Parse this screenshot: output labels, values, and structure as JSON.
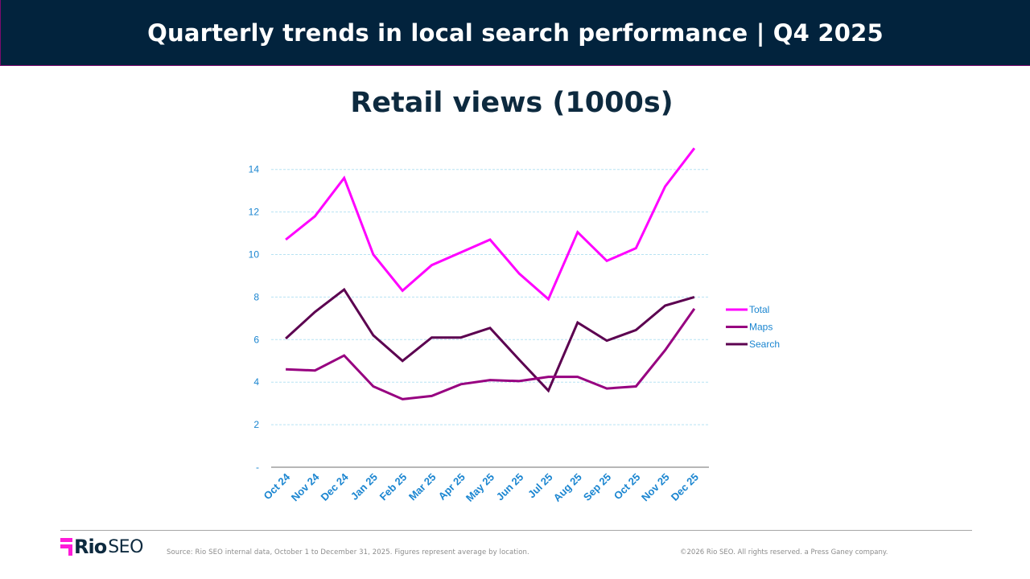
{
  "header": {
    "title": "Quarterly trends in local search performance | Q4 2025"
  },
  "chart_title": "Retail views (1000s)",
  "chart_data": {
    "type": "line",
    "title": "Retail views (1000s)",
    "xlabel": "",
    "ylabel": "",
    "categories": [
      "Oct 24",
      "Nov 24",
      "Dec 24",
      "Jan 25",
      "Feb 25",
      "Mar 25",
      "Apr 25",
      "May 25",
      "Jun 25",
      "Jul 25",
      "Aug 25",
      "Sep 25",
      "Oct 25",
      "Nov 25",
      "Dec 25"
    ],
    "series": [
      {
        "name": "Total",
        "color": "#ff00ff",
        "values": [
          10.7,
          11.8,
          13.6,
          10.0,
          8.3,
          9.5,
          10.1,
          10.7,
          9.1,
          7.9,
          11.05,
          9.7,
          10.3,
          13.2,
          15.0
        ]
      },
      {
        "name": "Maps",
        "color": "#970080",
        "values": [
          4.6,
          4.55,
          5.25,
          3.8,
          3.2,
          3.35,
          3.9,
          4.1,
          4.05,
          4.25,
          4.25,
          3.7,
          3.8,
          5.5,
          7.45
        ]
      },
      {
        "name": "Search",
        "color": "#5c0050",
        "values": [
          6.05,
          7.3,
          8.35,
          6.2,
          5.0,
          6.1,
          6.1,
          6.55,
          5.05,
          3.6,
          6.8,
          5.95,
          6.45,
          7.6,
          8.0
        ]
      }
    ],
    "yticks": [
      "-",
      "2",
      "4",
      "6",
      "8",
      "10",
      "12",
      "14"
    ],
    "ylim": [
      0,
      14
    ],
    "grid": true,
    "legend_position": "right"
  },
  "footer": {
    "logo_rio": "Rio",
    "logo_seo": "SEO",
    "source": "Source: Rio SEO internal data, October 1 to December 31, 2025. Figures represent average by location.",
    "copyright": "©2026 Rio SEO.  All rights reserved. a Press Ganey company."
  }
}
